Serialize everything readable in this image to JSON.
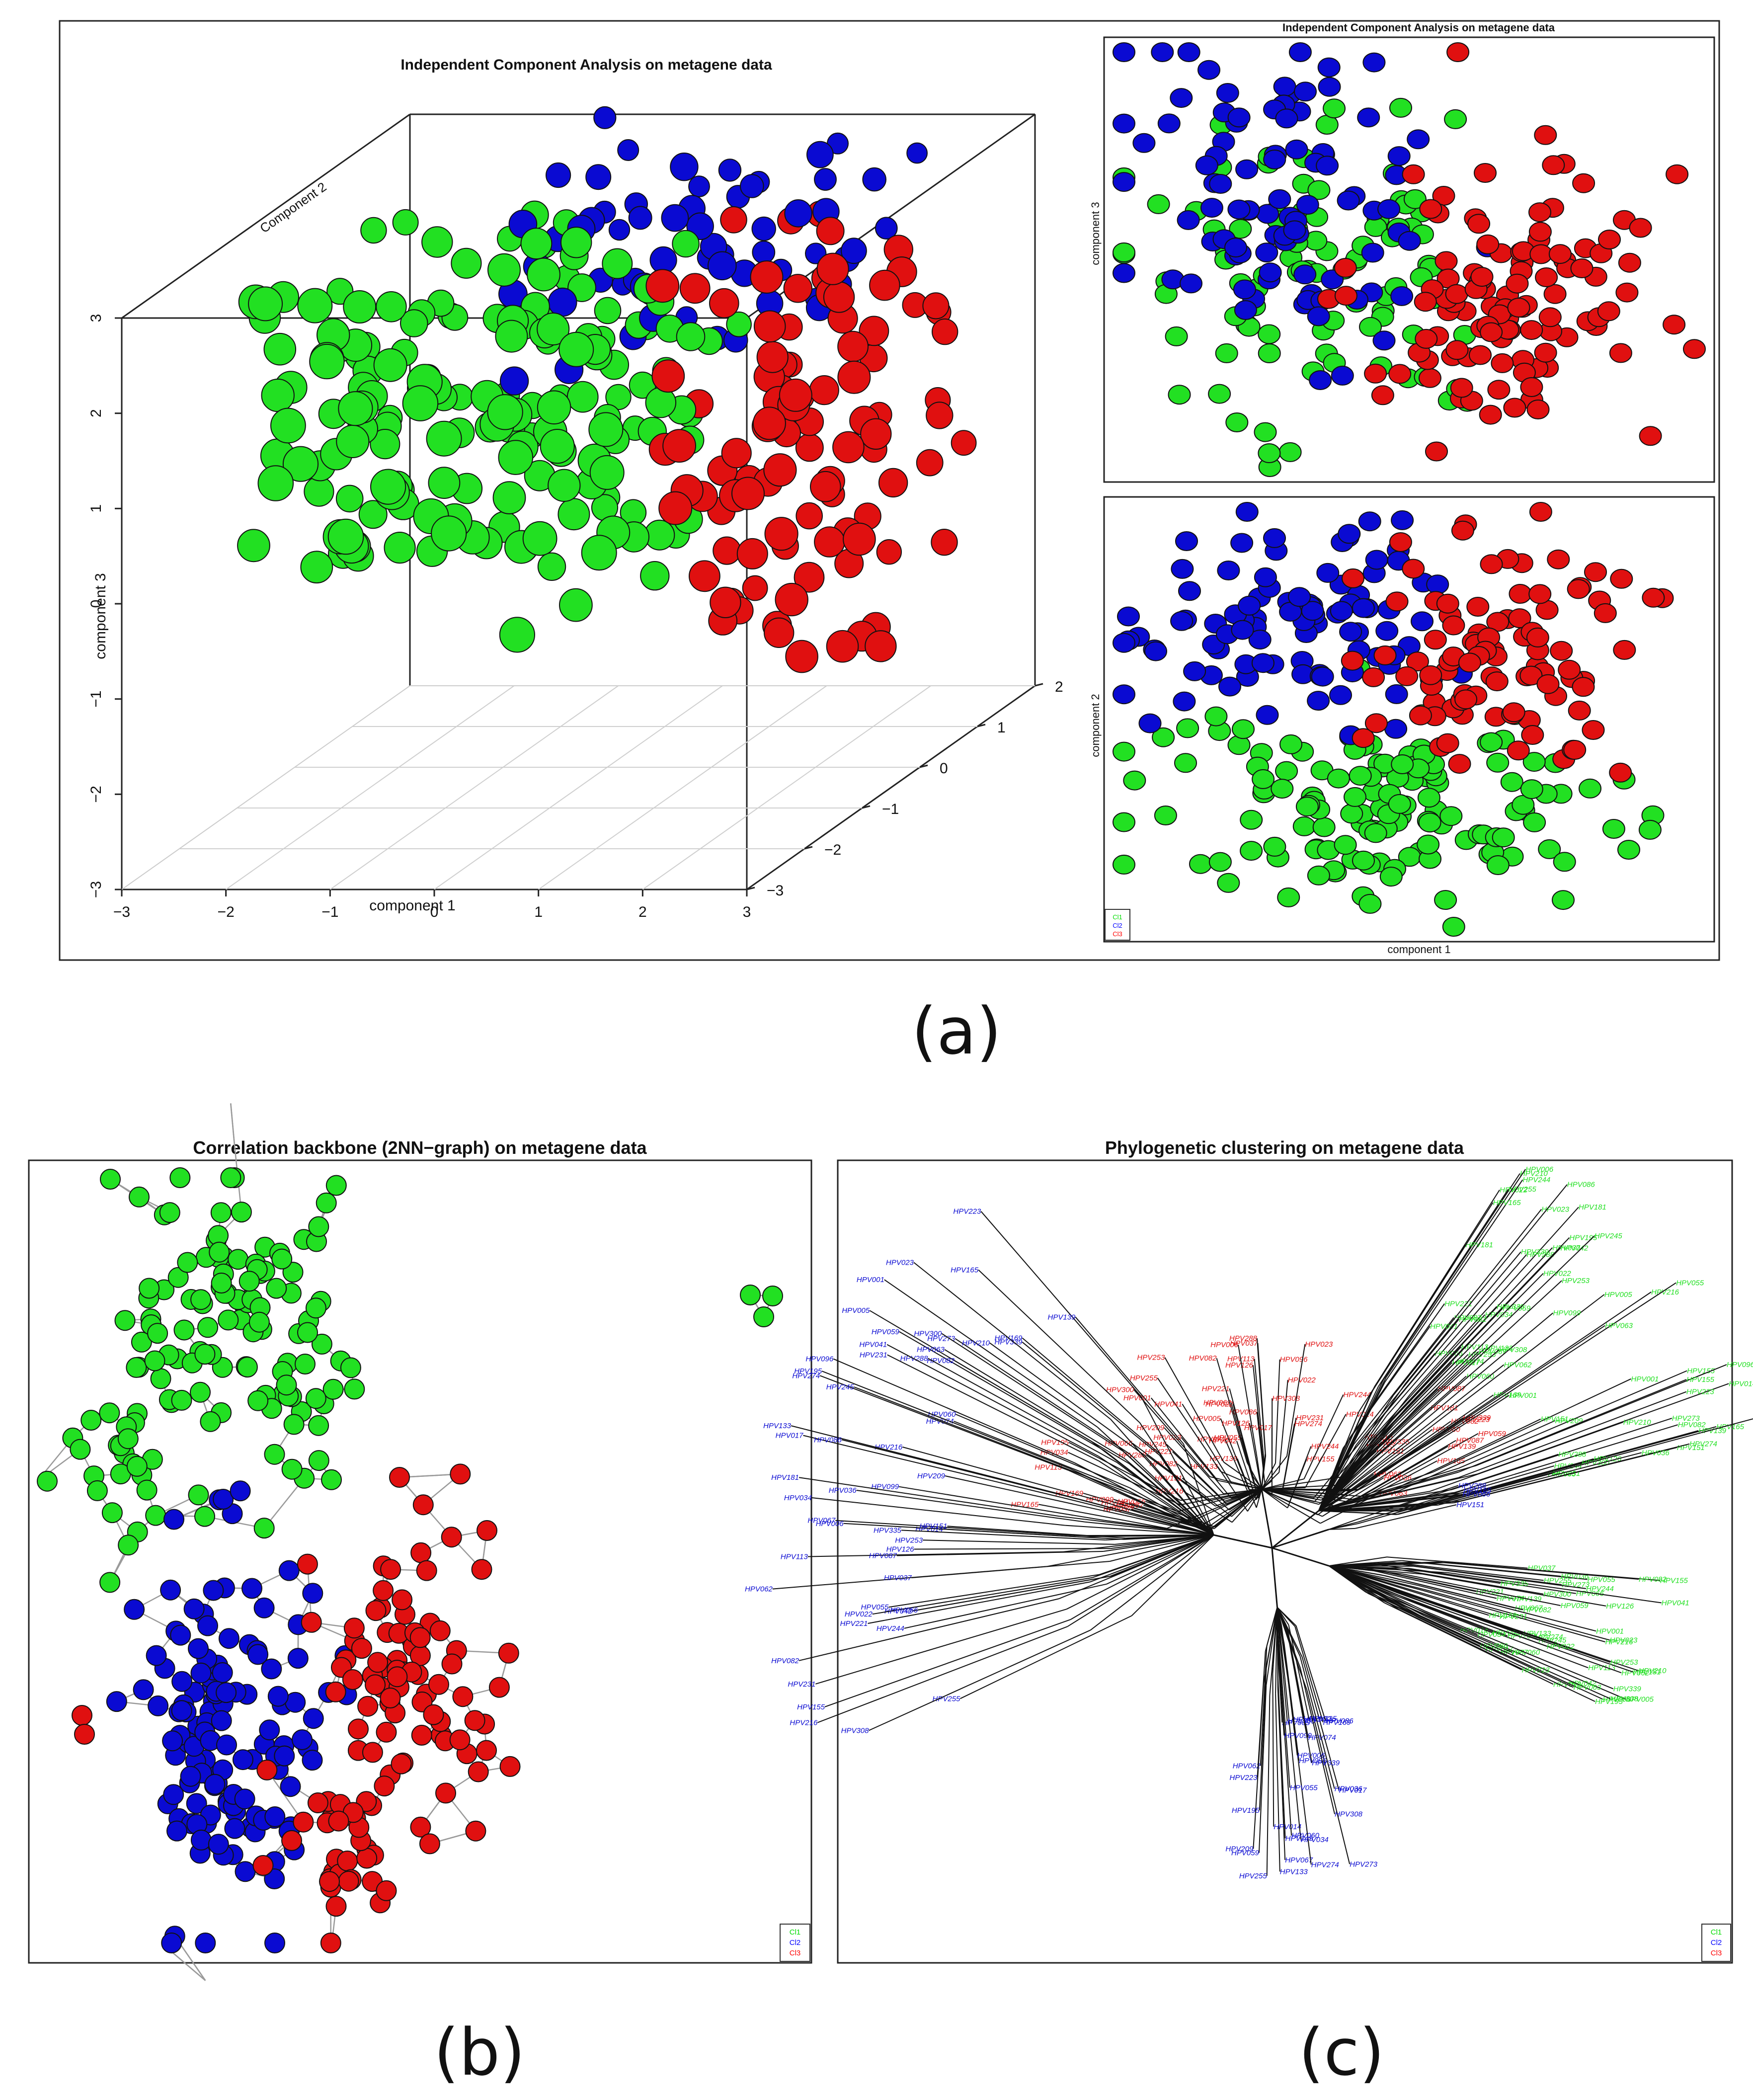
{
  "captions": {
    "a": "(a)",
    "b": "(b)",
    "c": "(c)"
  },
  "legend": {
    "items": [
      "Cl1",
      "Cl2",
      "Cl3"
    ],
    "colors": [
      "#00dd00",
      "#0000ff",
      "#ff0000"
    ]
  },
  "colors": {
    "green": "#22e022",
    "blue": "#0a0ad2",
    "red": "#e01010"
  },
  "chart_data": [
    {
      "type": "scatter",
      "id": "ica3d",
      "title": "Independent Component Analysis on metagene data",
      "xlabel": "component 1",
      "ylabel": "Component 2",
      "zlabel": "component 3",
      "xlim": [
        -3,
        3
      ],
      "ylim": [
        -3,
        2
      ],
      "zlim": [
        -3,
        3
      ],
      "xticks": [
        "−3",
        "−2",
        "−1",
        "0",
        "1",
        "2",
        "3"
      ],
      "yticks": [
        "−3",
        "−2",
        "−1",
        "0",
        "1",
        "2"
      ],
      "zticks": [
        "−3",
        "−2",
        "−1",
        "0",
        "1",
        "2",
        "3"
      ],
      "series": [
        {
          "name": "Cl1",
          "color": "green",
          "n": 175,
          "x": [
            -3.0,
            0.8
          ],
          "y": [
            -1.5,
            1.0
          ],
          "z": [
            -1.0,
            2.7
          ]
        },
        {
          "name": "Cl2",
          "color": "blue",
          "n": 60,
          "x": [
            -1.0,
            2.0
          ],
          "y": [
            0.0,
            2.0
          ],
          "z": [
            1.0,
            3.2
          ]
        },
        {
          "name": "Cl3",
          "color": "red",
          "n": 100,
          "x": [
            0.8,
            3.0
          ],
          "y": [
            -1.0,
            1.0
          ],
          "z": [
            -1.5,
            2.5
          ]
        }
      ]
    },
    {
      "type": "scatter",
      "id": "ica13",
      "title": "Independent Component Analysis on metagene data",
      "xlabel": "",
      "ylabel": "component 3",
      "series": [
        {
          "name": "Cl1",
          "color": "green",
          "n": 95
        },
        {
          "name": "Cl2",
          "color": "blue",
          "n": 90
        },
        {
          "name": "Cl3",
          "color": "red",
          "n": 110
        }
      ]
    },
    {
      "type": "scatter",
      "id": "ica12",
      "title": "",
      "xlabel": "component 1",
      "ylabel": "component 2",
      "series": [
        {
          "name": "Cl1",
          "color": "green",
          "n": 140
        },
        {
          "name": "Cl2",
          "color": "blue",
          "n": 95
        },
        {
          "name": "Cl3",
          "color": "red",
          "n": 95
        }
      ]
    },
    {
      "type": "network",
      "id": "backbone",
      "title": "Correlation backbone (2NN−graph) on metagene data",
      "series": [
        {
          "name": "Cl1",
          "color": "green",
          "n": 140
        },
        {
          "name": "Cl2",
          "color": "blue",
          "n": 130
        },
        {
          "name": "Cl3",
          "color": "red",
          "n": 115
        }
      ]
    },
    {
      "type": "tree",
      "id": "phylo",
      "title": "Phylogenetic clustering on metagene data",
      "series": [
        {
          "name": "Cl1",
          "color": "green"
        },
        {
          "name": "Cl2",
          "color": "blue"
        },
        {
          "name": "Cl3",
          "color": "red"
        }
      ],
      "tip_labels": [
        "HPV155",
        "HPV082",
        "HPV022",
        "HPV244",
        "HPV063",
        "HPV288",
        "HPV165",
        "HPV151",
        "HPV066",
        "HPV113",
        "HPV221",
        "HPV087",
        "HPV139",
        "HPV023",
        "HPV126",
        "HPV041",
        "HPV037",
        "HPV231",
        "HPV216",
        "HPV074",
        "HPV133",
        "HPV005",
        "HPV067",
        "HPV014",
        "HPV255",
        "HPV169",
        "HPV034",
        "HPV273",
        "HPV017",
        "HPV060",
        "HPV300",
        "HPV209",
        "HPV274",
        "HPV042",
        "HPV082",
        "HPV096",
        "HPV006",
        "HPV086",
        "HPV055",
        "HPV059",
        "HPV099",
        "HPV195",
        "HPV339",
        "HPV335",
        "HPV308",
        "HPV245",
        "HPV036",
        "HPV062",
        "HPV223",
        "HPV001",
        "HPV210",
        "HPV181",
        "HPV253"
      ]
    }
  ]
}
